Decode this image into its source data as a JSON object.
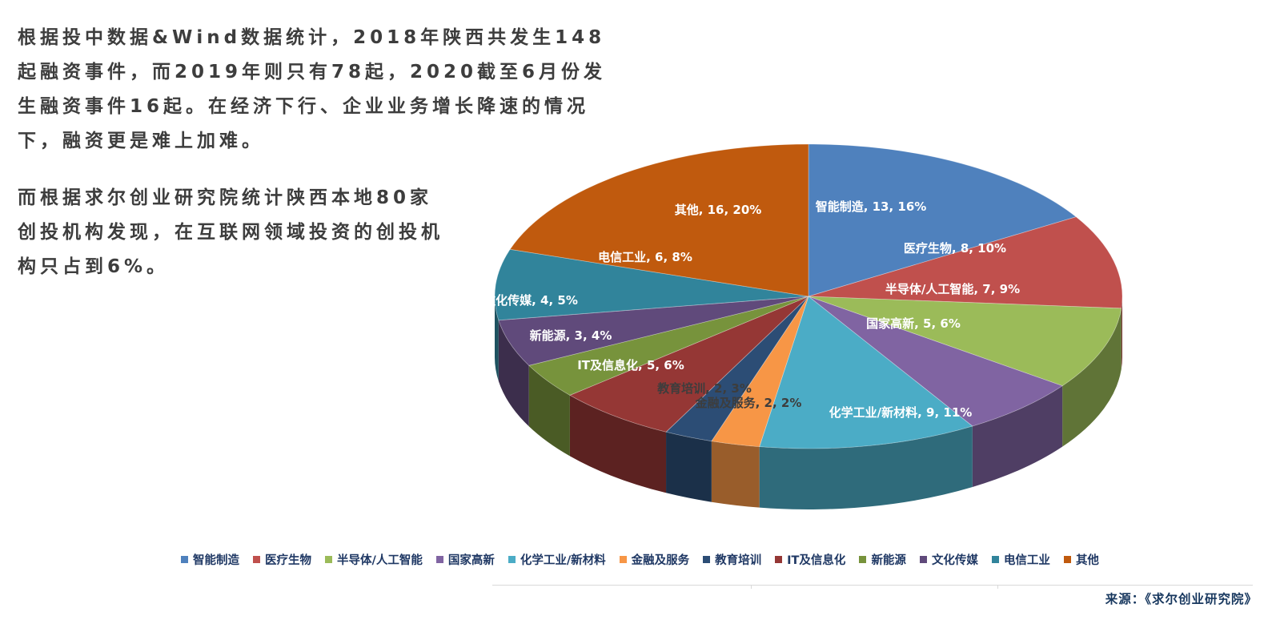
{
  "intro": {
    "paragraph1": "根据投中数据&Wind数据统计，2018年陕西共发生148起融资事件，而2019年则只有78起，2020截至6月份发生融资事件16起。在经济下行、企业业务增长降速的情况下，融资更是难上加难。",
    "paragraph2": "而根据求尔创业研究院统计陕西本地80家创投机构发现，在互联网领域投资的创投机构只占到6%。"
  },
  "chart_data": {
    "type": "pie",
    "style": "3d",
    "total": 80,
    "legend_position": "bottom",
    "data_label_format": "label, value, percent",
    "slices": [
      {
        "label": "智能制造",
        "value": 13,
        "percent": "16%",
        "color": "#4F81BD",
        "label_color": "#FFFFFF"
      },
      {
        "label": "医疗生物",
        "value": 8,
        "percent": "10%",
        "color": "#C0504D",
        "label_color": "#FFFFFF"
      },
      {
        "label": "半导体/人工智能",
        "value": 7,
        "percent": "9%",
        "color": "#9BBB59",
        "label_color": "#FFFFFF"
      },
      {
        "label": "国家高新",
        "value": 5,
        "percent": "6%",
        "color": "#8064A2",
        "label_color": "#FFFFFF"
      },
      {
        "label": "化学工业/新材料",
        "value": 9,
        "percent": "11%",
        "color": "#4BACC6",
        "label_color": "#FFFFFF"
      },
      {
        "label": "金融及服务",
        "value": 2,
        "percent": "2%",
        "color": "#F79646",
        "label_color": "#3d3d3d"
      },
      {
        "label": "教育培训",
        "value": 2,
        "percent": "3%",
        "color": "#2C4D75",
        "label_color": "#3d3d3d"
      },
      {
        "label": "IT及信息化",
        "value": 5,
        "percent": "6%",
        "color": "#953735",
        "label_color": "#FFFFFF"
      },
      {
        "label": "新能源",
        "value": 3,
        "percent": "4%",
        "color": "#77933C",
        "label_color": "#FFFFFF"
      },
      {
        "label": "文化传媒",
        "value": 4,
        "percent": "5%",
        "color": "#604A7B",
        "label_color": "#FFFFFF"
      },
      {
        "label": "电信工业",
        "value": 6,
        "percent": "8%",
        "color": "#31849B",
        "label_color": "#FFFFFF"
      },
      {
        "label": "其他",
        "value": 16,
        "percent": "20%",
        "color": "#C05A0E",
        "label_color": "#FFFFFF"
      }
    ]
  },
  "source": {
    "label": "来源：《求尔创业研究院》"
  }
}
